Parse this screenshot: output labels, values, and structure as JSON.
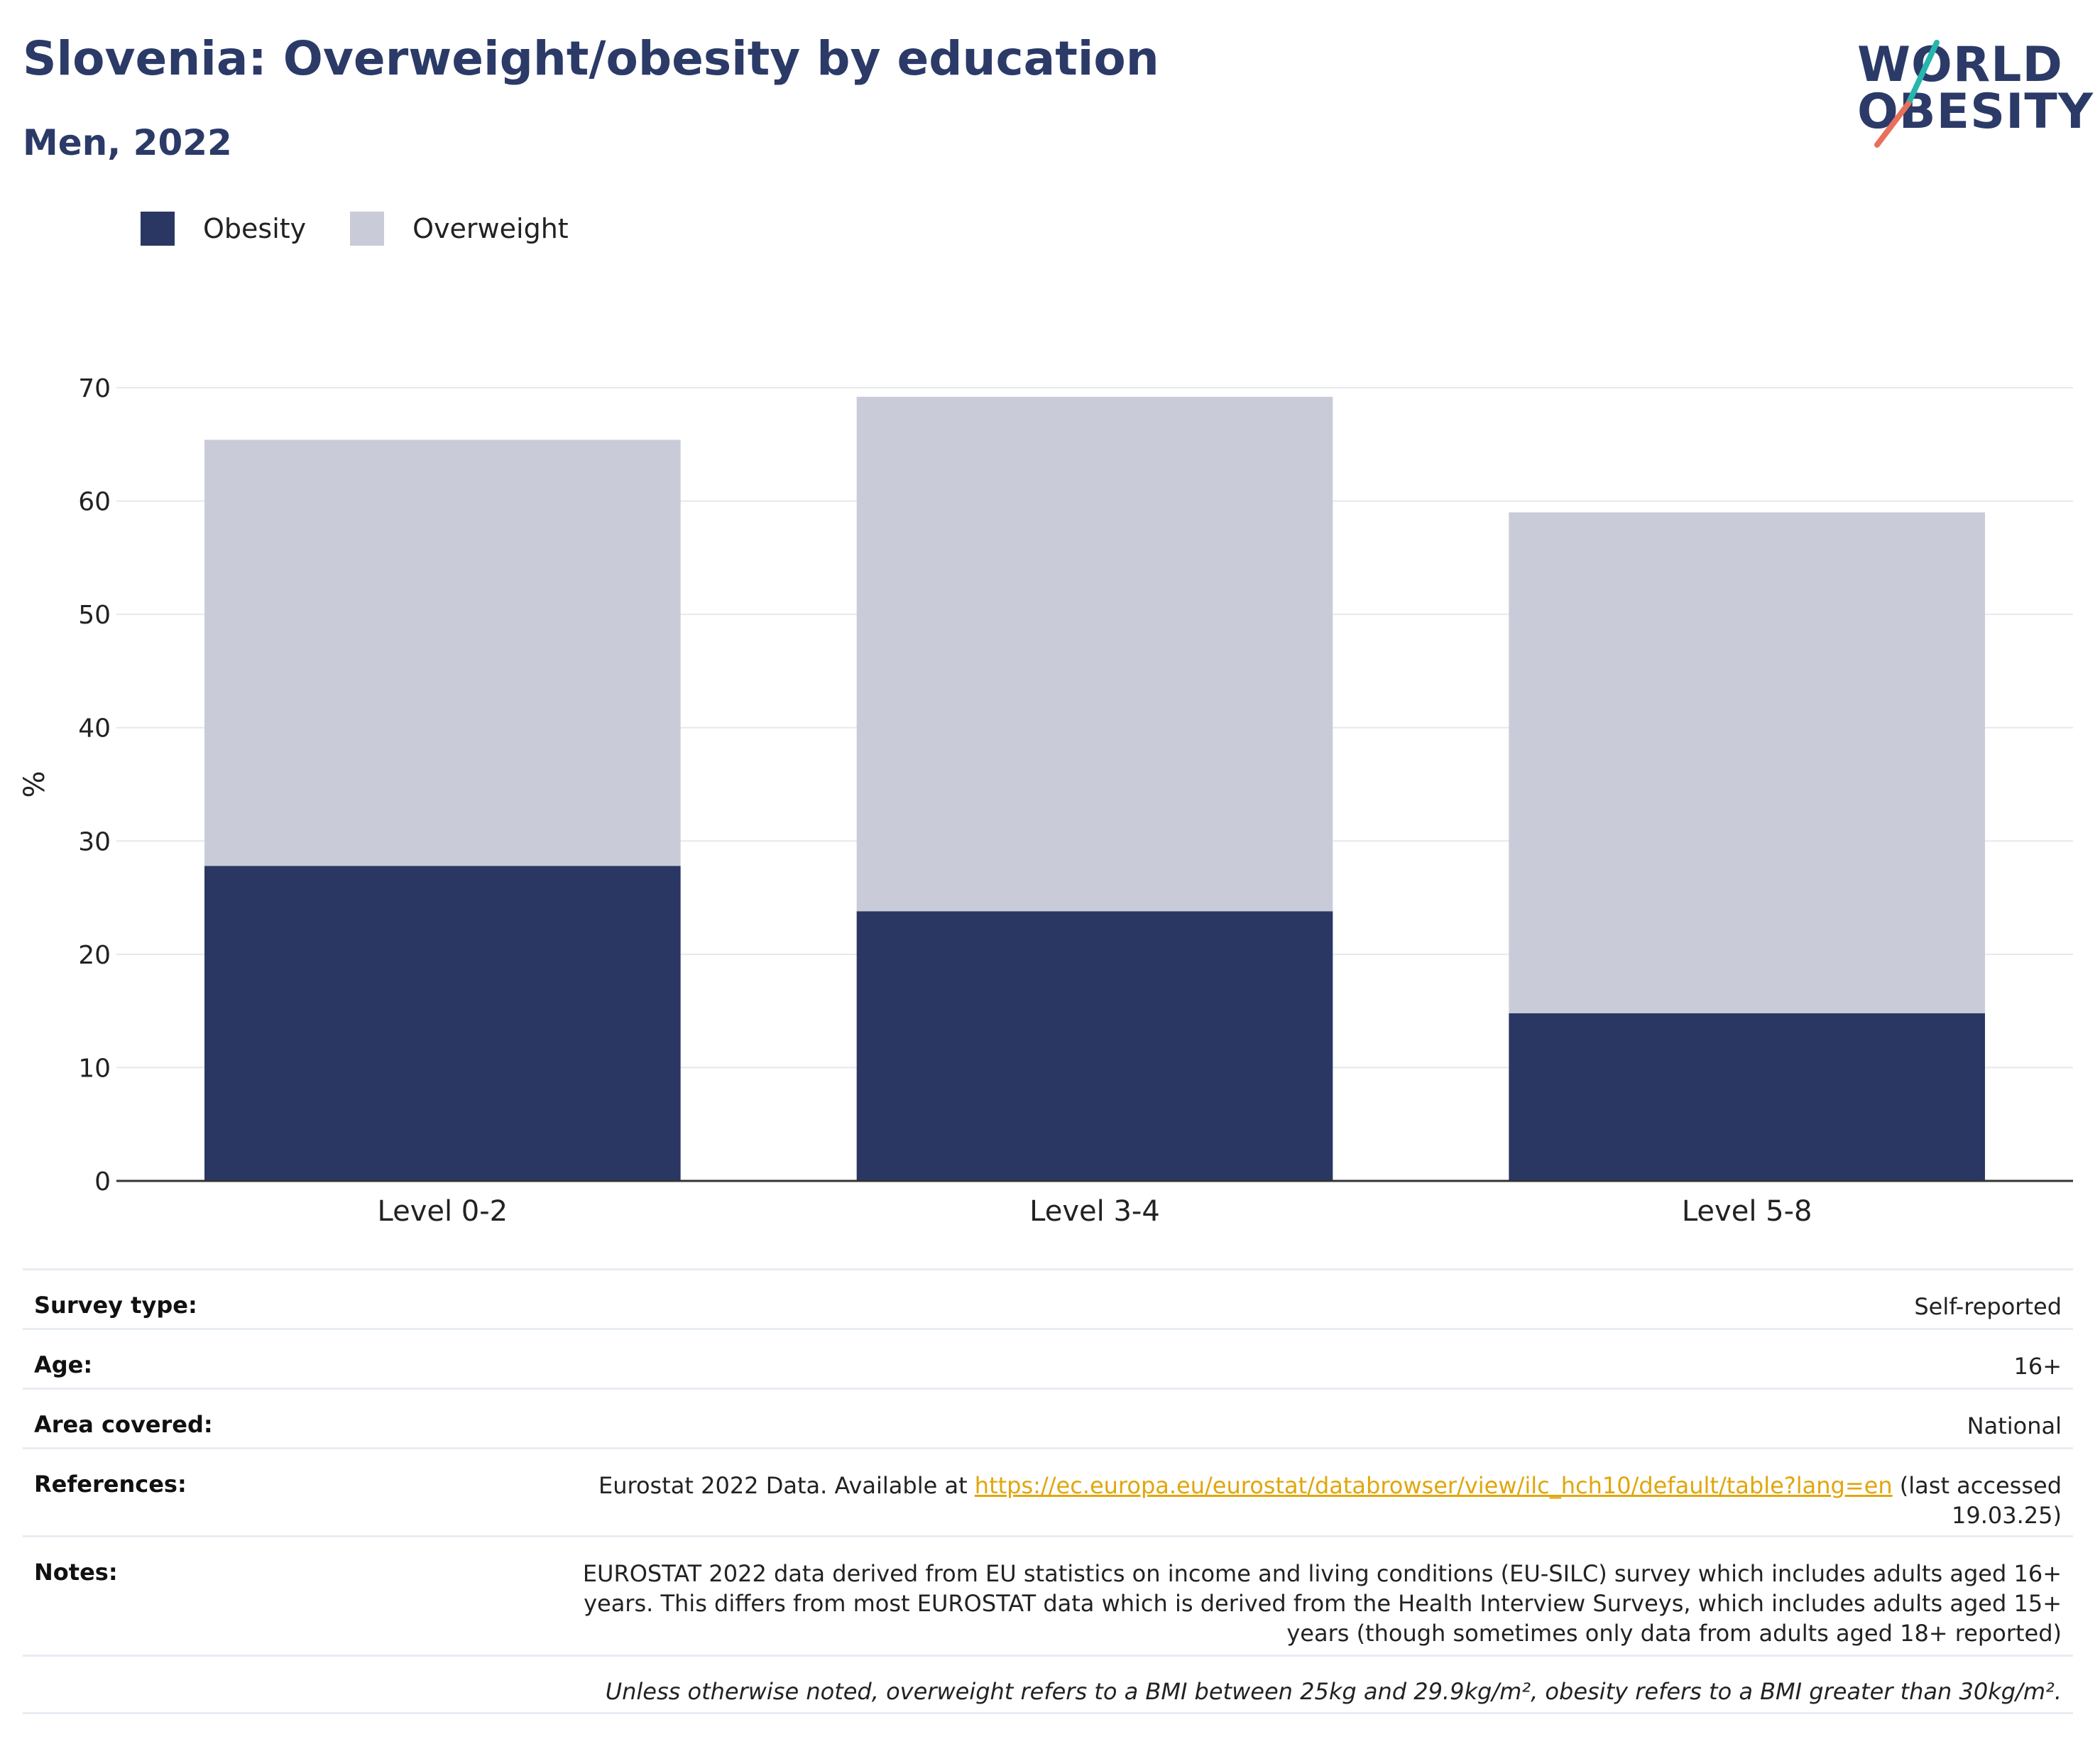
{
  "header": {
    "title": "Slovenia: Overweight/obesity by education",
    "subtitle": "Men, 2022"
  },
  "logo": {
    "line1": "WORLD",
    "line2": "OBESITY",
    "accent_top": "#27b6ad",
    "accent_bottom": "#e8705c"
  },
  "legend": [
    {
      "label": "Obesity",
      "color": "#2a3763"
    },
    {
      "label": "Overweight",
      "color": "#c9ccd8"
    }
  ],
  "chart_data": {
    "type": "bar",
    "stacked": true,
    "categories": [
      "Level 0-2",
      "Level 3-4",
      "Level 5-8"
    ],
    "series": [
      {
        "name": "Obesity",
        "values": [
          27.8,
          23.8,
          14.8
        ],
        "color": "#2a3763"
      },
      {
        "name": "Overweight",
        "values": [
          37.6,
          45.4,
          44.2
        ],
        "color": "#c9ccd8"
      }
    ],
    "title": "Slovenia: Overweight/obesity by education",
    "subtitle": "Men, 2022",
    "xlabel": "",
    "ylabel": "%",
    "ylim": [
      0,
      70
    ],
    "yticks": [
      0,
      10,
      20,
      30,
      40,
      50,
      60,
      70
    ],
    "grid": true,
    "legend_position": "top-left"
  },
  "meta": {
    "survey_type": {
      "label": "Survey type:",
      "value": "Self-reported"
    },
    "age": {
      "label": "Age:",
      "value": "16+"
    },
    "area": {
      "label": "Area covered:",
      "value": "National"
    },
    "references": {
      "label": "References:",
      "prefix": "Eurostat 2022 Data. Available at ",
      "link": "https://ec.europa.eu/eurostat/databrowser/view/ilc_hch10/default/table?lang=en",
      "suffix": " (last accessed 19.03.25)"
    },
    "notes": {
      "label": "Notes:",
      "value": "EUROSTAT 2022 data derived from EU statistics on income and living conditions (EU-SILC) survey which includes adults aged 16+ years. This differs from most EUROSTAT data which is derived from the Health Interview Surveys, which includes adults aged 15+ years (though sometimes only data from adults aged 18+ reported)"
    },
    "footnote": "Unless otherwise noted, overweight refers to a BMI between 25kg and 29.9kg/m², obesity refers to a BMI greater than 30kg/m²."
  }
}
